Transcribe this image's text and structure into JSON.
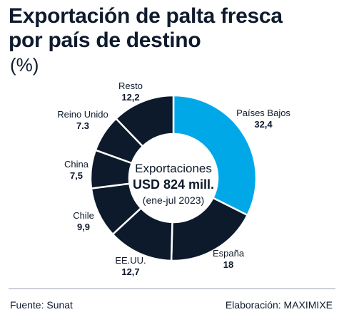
{
  "title_lines": [
    "Exportación de palta fresca",
    "por país de destino"
  ],
  "unit": "(%)",
  "center": {
    "line1": "Exportaciones",
    "line2": "USD 824 mill.",
    "line3": "(ene-jul 2023)"
  },
  "footer": {
    "source": "Fuente: Sunat",
    "credit": "Elaboración: MAXIMIXE"
  },
  "colors": {
    "highlight": "#00a8e8",
    "default": "#0d1a2b",
    "separator": "#ffffff"
  },
  "chart_data": {
    "type": "pie",
    "donut": true,
    "categories": [
      "Países Bajos",
      "España",
      "EE.UU.",
      "Chile",
      "China",
      "Reino Unido",
      "Resto"
    ],
    "values": [
      32.4,
      18,
      12.7,
      9.9,
      7.5,
      7.3,
      12.2
    ],
    "value_labels": [
      "32,4",
      "18",
      "12,7",
      "9,9",
      "7,5",
      "7.3",
      "12,2"
    ],
    "highlight": "Países Bajos"
  }
}
